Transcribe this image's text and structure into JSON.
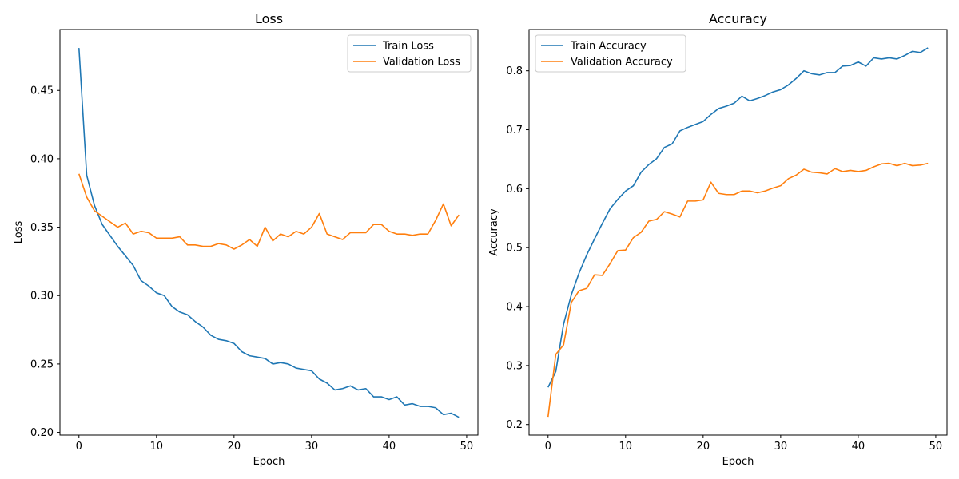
{
  "chart_data": [
    {
      "type": "line",
      "title": "Loss",
      "xlabel": "Epoch",
      "ylabel": "Loss",
      "xlim": [
        -2.45,
        51.45
      ],
      "ylim": [
        0.198,
        0.4945
      ],
      "xticks": [
        0,
        10,
        20,
        30,
        40,
        50
      ],
      "yticks": [
        0.2,
        0.25,
        0.3,
        0.35,
        0.4,
        0.45
      ],
      "ytick_labels": [
        "0.20",
        "0.25",
        "0.30",
        "0.35",
        "0.40",
        "0.45"
      ],
      "legend_position": "upper right",
      "grid": false,
      "x": [
        0,
        1,
        2,
        3,
        4,
        5,
        6,
        7,
        8,
        9,
        10,
        11,
        12,
        13,
        14,
        15,
        16,
        17,
        18,
        19,
        20,
        21,
        22,
        23,
        24,
        25,
        26,
        27,
        28,
        29,
        30,
        31,
        32,
        33,
        34,
        35,
        36,
        37,
        38,
        39,
        40,
        41,
        42,
        43,
        44,
        45,
        46,
        47,
        48,
        49
      ],
      "series": [
        {
          "name": "Train Loss",
          "color": "#1f77b4",
          "values": [
            0.481,
            0.388,
            0.366,
            0.352,
            0.344,
            0.336,
            0.329,
            0.322,
            0.311,
            0.307,
            0.302,
            0.3,
            0.292,
            0.288,
            0.286,
            0.281,
            0.277,
            0.271,
            0.268,
            0.267,
            0.265,
            0.259,
            0.256,
            0.255,
            0.254,
            0.25,
            0.251,
            0.25,
            0.247,
            0.246,
            0.245,
            0.239,
            0.236,
            0.231,
            0.232,
            0.234,
            0.231,
            0.232,
            0.226,
            0.226,
            0.224,
            0.226,
            0.22,
            0.221,
            0.219,
            0.219,
            0.218,
            0.213,
            0.214,
            0.211
          ]
        },
        {
          "name": "Validation Loss",
          "color": "#ff7f0e",
          "values": [
            0.389,
            0.372,
            0.362,
            0.358,
            0.354,
            0.35,
            0.353,
            0.345,
            0.347,
            0.346,
            0.342,
            0.342,
            0.342,
            0.343,
            0.337,
            0.337,
            0.336,
            0.336,
            0.338,
            0.337,
            0.334,
            0.337,
            0.341,
            0.336,
            0.35,
            0.34,
            0.345,
            0.343,
            0.347,
            0.345,
            0.35,
            0.36,
            0.345,
            0.343,
            0.341,
            0.346,
            0.346,
            0.346,
            0.352,
            0.352,
            0.347,
            0.345,
            0.345,
            0.344,
            0.345,
            0.345,
            0.355,
            0.367,
            0.351,
            0.359
          ]
        }
      ]
    },
    {
      "type": "line",
      "title": "Accuracy",
      "xlabel": "Epoch",
      "ylabel": "Accuracy",
      "xlim": [
        -2.45,
        51.45
      ],
      "ylim": [
        0.182,
        0.87
      ],
      "xticks": [
        0,
        10,
        20,
        30,
        40,
        50
      ],
      "yticks": [
        0.2,
        0.3,
        0.4,
        0.5,
        0.6,
        0.7,
        0.8
      ],
      "ytick_labels": [
        "0.2",
        "0.3",
        "0.4",
        "0.5",
        "0.6",
        "0.7",
        "0.8"
      ],
      "legend_position": "upper left",
      "grid": false,
      "x": [
        0,
        1,
        2,
        3,
        4,
        5,
        6,
        7,
        8,
        9,
        10,
        11,
        12,
        13,
        14,
        15,
        16,
        17,
        18,
        19,
        20,
        21,
        22,
        23,
        24,
        25,
        26,
        27,
        28,
        29,
        30,
        31,
        32,
        33,
        34,
        35,
        36,
        37,
        38,
        39,
        40,
        41,
        42,
        43,
        44,
        45,
        46,
        47,
        48,
        49
      ],
      "series": [
        {
          "name": "Train Accuracy",
          "color": "#1f77b4",
          "values": [
            0.263,
            0.29,
            0.37,
            0.42,
            0.457,
            0.488,
            0.515,
            0.541,
            0.566,
            0.582,
            0.596,
            0.605,
            0.628,
            0.641,
            0.651,
            0.67,
            0.676,
            0.698,
            0.704,
            0.709,
            0.714,
            0.726,
            0.736,
            0.74,
            0.745,
            0.757,
            0.749,
            0.753,
            0.758,
            0.764,
            0.768,
            0.776,
            0.787,
            0.8,
            0.795,
            0.793,
            0.797,
            0.797,
            0.808,
            0.809,
            0.815,
            0.808,
            0.822,
            0.82,
            0.822,
            0.82,
            0.826,
            0.833,
            0.831,
            0.839
          ]
        },
        {
          "name": "Validation Accuracy",
          "color": "#ff7f0e",
          "values": [
            0.213,
            0.319,
            0.335,
            0.407,
            0.427,
            0.431,
            0.454,
            0.453,
            0.473,
            0.495,
            0.496,
            0.517,
            0.526,
            0.545,
            0.548,
            0.561,
            0.557,
            0.552,
            0.579,
            0.579,
            0.581,
            0.611,
            0.592,
            0.59,
            0.59,
            0.596,
            0.596,
            0.593,
            0.596,
            0.601,
            0.605,
            0.617,
            0.623,
            0.633,
            0.628,
            0.627,
            0.625,
            0.634,
            0.629,
            0.631,
            0.629,
            0.631,
            0.637,
            0.642,
            0.643,
            0.639,
            0.643,
            0.639,
            0.64,
            0.643
          ]
        }
      ]
    }
  ]
}
